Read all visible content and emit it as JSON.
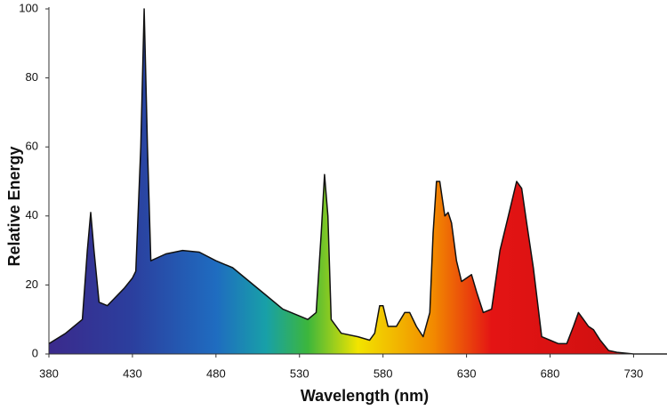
{
  "chart_data": {
    "type": "area",
    "x_label": "Wavelength (nm)",
    "y_label": "Relative Energy",
    "x": [
      380,
      390,
      400,
      403,
      405,
      407,
      410,
      415,
      425,
      430,
      432,
      435,
      437,
      439,
      441,
      450,
      460,
      470,
      480,
      490,
      500,
      510,
      520,
      530,
      535,
      540,
      543,
      545,
      547,
      549,
      555,
      565,
      572,
      575,
      578,
      580,
      583,
      588,
      593,
      596,
      600,
      604,
      608,
      610,
      612,
      614,
      617,
      619,
      621,
      624,
      627,
      630,
      633,
      636,
      640,
      645,
      650,
      655,
      660,
      663,
      666,
      670,
      675,
      680,
      685,
      690,
      694,
      697,
      700,
      703,
      706,
      710,
      715,
      720,
      730,
      750
    ],
    "values": [
      3,
      6,
      10,
      30,
      41,
      30,
      15,
      14,
      19,
      22,
      24,
      60,
      100,
      60,
      27,
      29,
      30,
      29.5,
      27,
      25,
      21,
      17,
      13,
      11,
      10,
      12,
      35,
      52,
      40,
      10,
      6,
      5,
      4,
      6,
      14,
      14,
      8,
      8,
      12,
      12,
      8,
      5,
      12,
      35,
      50,
      50,
      40,
      41,
      38,
      27,
      21,
      22,
      23,
      18,
      12,
      13,
      30,
      40,
      50,
      48,
      38,
      25,
      5,
      4,
      3,
      3,
      8,
      12,
      10,
      8,
      7,
      4,
      1,
      0.5,
      0,
      0
    ],
    "xlim": [
      380,
      750
    ],
    "ylim": [
      0,
      100
    ],
    "xticks": [
      380,
      430,
      480,
      530,
      580,
      630,
      680,
      730
    ],
    "yticks": [
      0,
      20,
      40,
      60,
      80,
      100
    ],
    "grid": false,
    "line_color": "#111111",
    "gradient": [
      {
        "at": 380,
        "color": "#3b2a8c"
      },
      {
        "at": 430,
        "color": "#2b3f9e"
      },
      {
        "at": 480,
        "color": "#1f6cc0"
      },
      {
        "at": 510,
        "color": "#18a0a8"
      },
      {
        "at": 535,
        "color": "#3cb63c"
      },
      {
        "at": 565,
        "color": "#f2e400"
      },
      {
        "at": 610,
        "color": "#f28a00"
      },
      {
        "at": 645,
        "color": "#e41414"
      },
      {
        "at": 720,
        "color": "#d01010"
      }
    ]
  }
}
